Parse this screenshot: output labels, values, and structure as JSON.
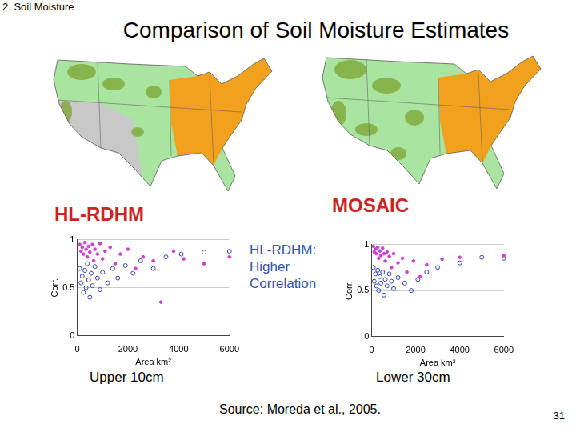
{
  "header": {
    "section": "2. Soil Moisture",
    "title": "Comparison of Soil Moisture Estimates"
  },
  "maps": [
    {
      "label": "HL-RDHM"
    },
    {
      "label": "MOSAIC"
    }
  ],
  "annotation": [
    "HL-RDHM:",
    "Higher",
    "Correlation"
  ],
  "captions": [
    "Upper 10cm",
    "Lower 30cm"
  ],
  "source": "Source: Moreda et al., 2005.",
  "page": 31,
  "chart_data": [
    {
      "type": "scatter",
      "x_label": "Area km²",
      "y_label": "Corr.",
      "xlim": [
        0,
        6000
      ],
      "xticks": [
        0,
        2000,
        4000,
        6000
      ],
      "ylim": [
        0,
        1
      ],
      "yticks": [
        0,
        0.5,
        1
      ],
      "grid": true,
      "series": [
        {
          "color": "#d040d0",
          "marker": "circle",
          "x": [
            100,
            150,
            200,
            250,
            300,
            350,
            400,
            450,
            500,
            600,
            650,
            700,
            800,
            900,
            1000,
            1100,
            1300,
            1500,
            1700,
            2000,
            2300,
            2600,
            3000,
            3300,
            3800,
            4200,
            5000,
            6000
          ],
          "values": [
            0.95,
            0.88,
            0.92,
            0.85,
            0.97,
            0.9,
            0.82,
            0.93,
            0.87,
            0.95,
            0.78,
            0.9,
            0.85,
            0.96,
            0.8,
            0.88,
            0.92,
            0.75,
            0.85,
            0.9,
            0.7,
            0.82,
            0.78,
            0.35,
            0.88,
            0.8,
            0.75,
            0.82
          ]
        },
        {
          "color": "#3344bb",
          "marker": "open_circle",
          "x": [
            100,
            150,
            200,
            250,
            300,
            350,
            400,
            450,
            500,
            550,
            600,
            700,
            800,
            900,
            1000,
            1200,
            1400,
            1600,
            1900,
            2200,
            2500,
            3000,
            3500,
            4100,
            5000,
            6000
          ],
          "values": [
            0.7,
            0.55,
            0.62,
            0.45,
            0.68,
            0.5,
            0.75,
            0.58,
            0.4,
            0.65,
            0.52,
            0.72,
            0.6,
            0.48,
            0.66,
            0.55,
            0.7,
            0.6,
            0.73,
            0.65,
            0.78,
            0.7,
            0.82,
            0.85,
            0.87,
            0.88
          ]
        }
      ]
    },
    {
      "type": "scatter",
      "x_label": "Area km²",
      "y_label": "Corr.",
      "xlim": [
        0,
        6000
      ],
      "xticks": [
        0,
        2000,
        4000,
        6000
      ],
      "ylim": [
        0,
        1
      ],
      "yticks": [
        0,
        0.5,
        1
      ],
      "grid": true,
      "series": [
        {
          "color": "#d040d0",
          "marker": "circle",
          "x": [
            80,
            120,
            180,
            220,
            280,
            320,
            380,
            420,
            500,
            560,
            620,
            700,
            800,
            900,
            1000,
            1200,
            1400,
            1600,
            1900,
            2200,
            2500,
            3200,
            4000,
            6000
          ],
          "values": [
            0.98,
            0.92,
            0.95,
            0.9,
            0.97,
            0.85,
            0.93,
            0.88,
            0.96,
            0.9,
            0.82,
            0.92,
            0.87,
            0.75,
            0.9,
            0.8,
            0.85,
            0.7,
            0.82,
            0.65,
            0.78,
            0.84,
            0.86,
            0.88
          ]
        },
        {
          "color": "#3344bb",
          "marker": "open_circle",
          "x": [
            80,
            120,
            180,
            220,
            280,
            320,
            380,
            420,
            500,
            560,
            620,
            700,
            800,
            900,
            1000,
            1200,
            1500,
            1800,
            2100,
            2500,
            3000,
            4000,
            5000,
            6000
          ],
          "values": [
            0.75,
            0.6,
            0.68,
            0.55,
            0.72,
            0.5,
            0.65,
            0.58,
            0.7,
            0.45,
            0.62,
            0.55,
            0.68,
            0.6,
            0.52,
            0.64,
            0.58,
            0.5,
            0.62,
            0.7,
            0.75,
            0.8,
            0.86,
            0.85
          ]
        }
      ]
    }
  ]
}
